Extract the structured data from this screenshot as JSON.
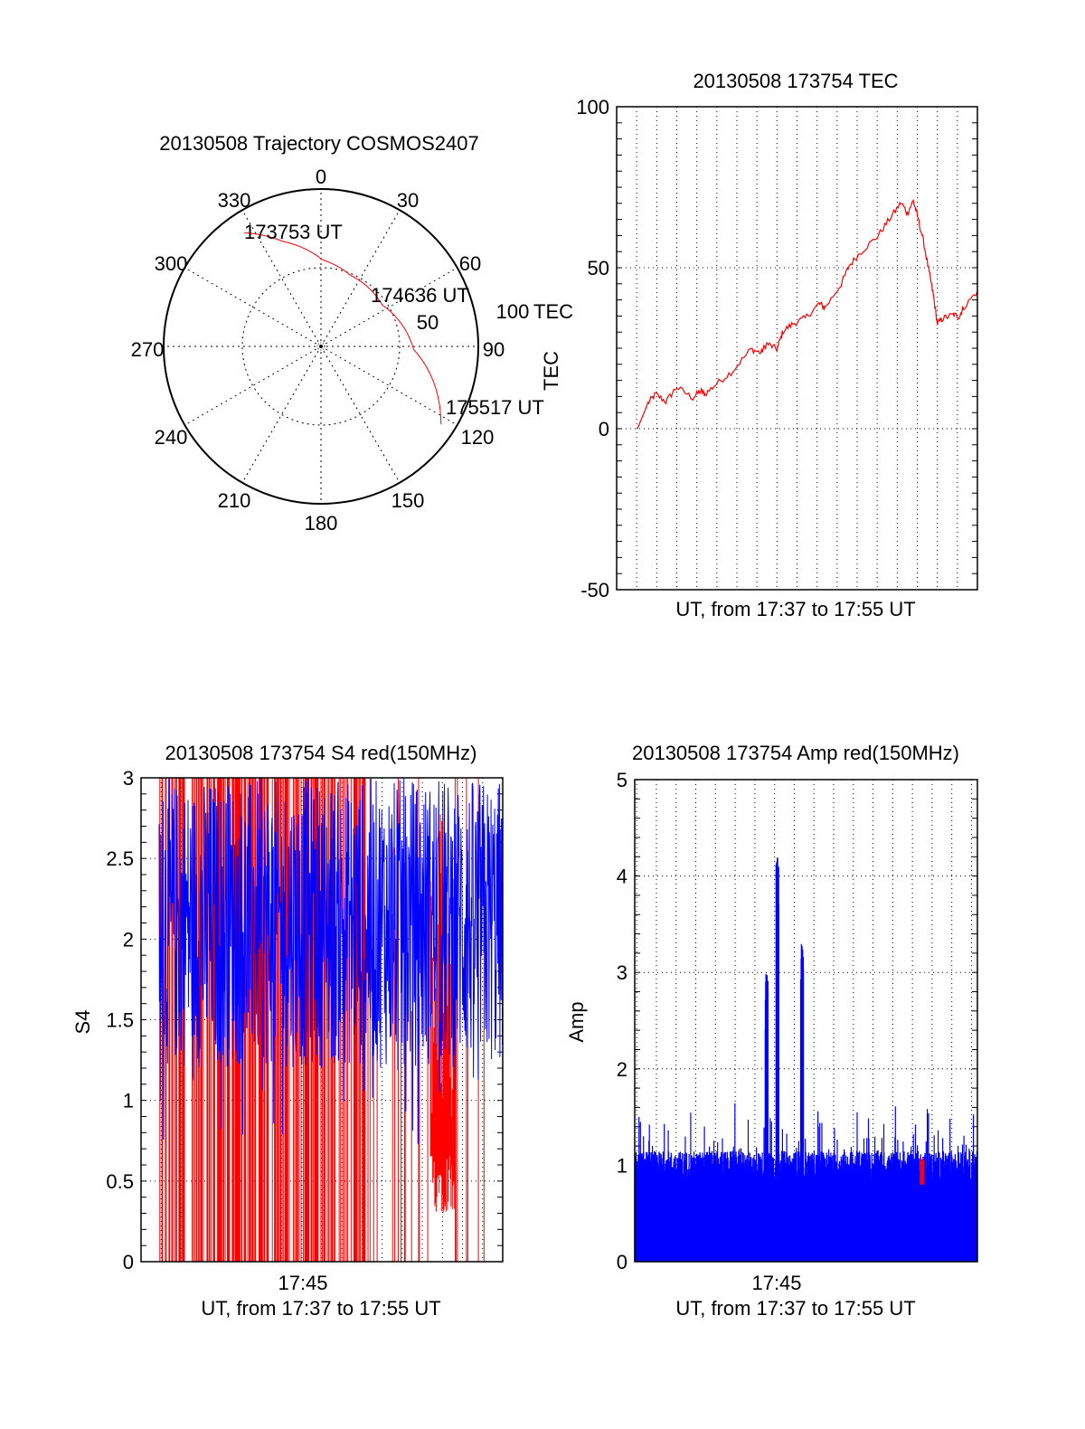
{
  "chart_data": [
    {
      "type": "polar",
      "title": "20130508 Trajectory COSMOS2407",
      "angle_labels": [
        "0",
        "30",
        "60",
        "90",
        "120",
        "150",
        "180",
        "210",
        "240",
        "270",
        "300",
        "330"
      ],
      "radial_labels": [
        "50",
        "100"
      ],
      "radial_max": 100,
      "rlabel": "TEC",
      "series": [
        {
          "name": "trajectory",
          "color": "#ff0000",
          "points": [
            [
              326,
              87
            ],
            [
              340,
              71
            ],
            [
              1,
              55
            ],
            [
              22,
              49
            ],
            [
              56,
              47
            ],
            [
              92,
              59
            ],
            [
              123,
              91
            ]
          ]
        }
      ],
      "annotations": [
        {
          "text": "173753 UT",
          "az": 326,
          "r": 87
        },
        {
          "text": "174636 UT",
          "az": 56,
          "r": 47
        },
        {
          "text": "175517 UT",
          "az": 123,
          "r": 91
        }
      ]
    },
    {
      "type": "line",
      "title": "20130508 173754 TEC",
      "xlabel": "UT, from 17:37 to 17:55 UT",
      "ylabel": "TEC",
      "xlim": [
        37,
        55
      ],
      "ylim": [
        -50,
        100
      ],
      "yticks": [
        "100",
        "50",
        "0",
        "-50"
      ],
      "grid": true,
      "series": [
        {
          "name": "TEC",
          "color": "#ff0000",
          "x": [
            38.04,
            38.56,
            38.94,
            39.46,
            39.99,
            40.8,
            41.2,
            41.4,
            42.0,
            42.8,
            43.7,
            44.2,
            44.5,
            45.0,
            45.3,
            45.8,
            46.4,
            47.1,
            47.4,
            48.2,
            48.6,
            49.2,
            50.0,
            50.6,
            51.2,
            51.5,
            51.8,
            52.0,
            52.3,
            52.6,
            52.8,
            53.0,
            53.3,
            53.8,
            54.1,
            54.3,
            55.0
          ],
          "y": [
            0,
            7.9,
            10.7,
            8.4,
            12.9,
            9.6,
            11.8,
            10.7,
            14,
            18,
            24.7,
            23.6,
            26.4,
            24.7,
            30.3,
            32.6,
            34.3,
            38.8,
            37.6,
            44.9,
            50.6,
            55,
            59.6,
            65,
            70.2,
            66.9,
            70.8,
            66.3,
            58.4,
            48.3,
            41.6,
            32.6,
            34.3,
            35.4,
            34.8,
            37.6,
            42.7
          ]
        }
      ]
    },
    {
      "type": "line",
      "title": "20130508 173754 S4 red(150MHz)",
      "xlabel": "UT, from 17:37 to 17:55 UT",
      "xtick_label": "17:45",
      "ylabel": "S4",
      "xlim": [
        37,
        55
      ],
      "ylim": [
        0,
        3
      ],
      "yticks": [
        "3",
        "2.5",
        "2",
        "1.5",
        "1",
        "0.5",
        "0"
      ],
      "grid": true,
      "series": [
        {
          "name": "S4 red",
          "color": "#ff0000",
          "x_range": [
            37.9,
            54.1
          ],
          "typical_range": [
            0.3,
            3
          ]
        },
        {
          "name": "S4 blue",
          "color": "#0000ff",
          "x_range": [
            37.9,
            55
          ],
          "typical_range": [
            1.1,
            3
          ]
        }
      ]
    },
    {
      "type": "bar",
      "title": "20130508 173754 Amp red(150MHz)",
      "xlabel": "UT, from 17:37 to 17:55 UT",
      "xtick_label": "17:45",
      "ylabel": "Amp",
      "xlim": [
        37.9,
        55.3
      ],
      "ylim": [
        0,
        5
      ],
      "yticks": [
        "5",
        "4",
        "3",
        "2",
        "1",
        "0"
      ],
      "grid": true,
      "series": [
        {
          "name": "Amp blue",
          "color": "#0000ff",
          "baseline": 1.0,
          "peaks": [
            [
              44.6,
              3.0
            ],
            [
              45.15,
              4.2
            ],
            [
              46.4,
              3.3
            ]
          ]
        },
        {
          "name": "Amp red",
          "color": "#ff0000",
          "x_range": [
            52.4,
            52.6
          ],
          "typical_range": [
            0.8,
            1.0
          ]
        }
      ]
    }
  ]
}
